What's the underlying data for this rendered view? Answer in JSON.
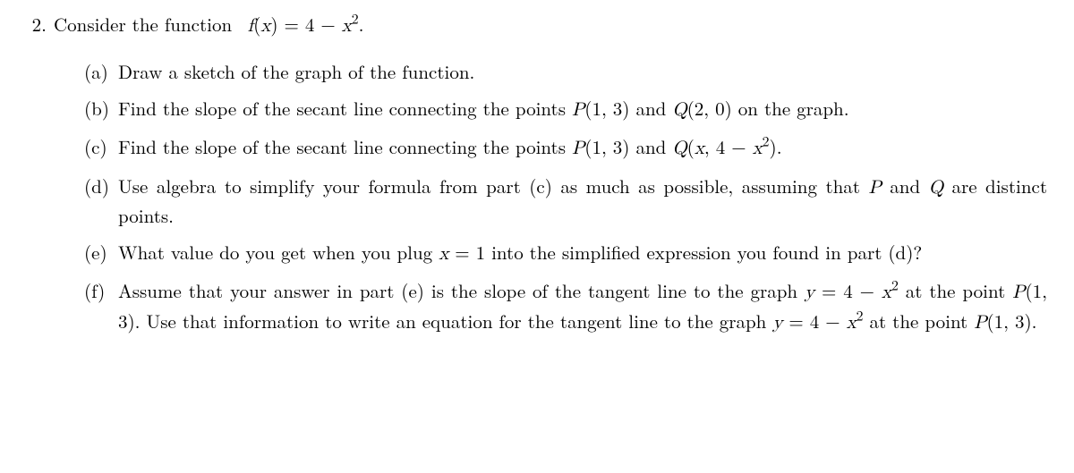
{
  "problem": {
    "number": "2.",
    "stem_html": "Consider the function &nbsp;<span class=\"math-it\">f</span>(<span class=\"math-it\">x</span>) = 4 &minus; <span class=\"math-it\">x</span><sup>2</sup>."
  },
  "subparts": [
    {
      "label": "(a)",
      "body_html": "Draw a sketch of the graph of the function."
    },
    {
      "label": "(b)",
      "body_html": "Find the slope of the secant line connecting the points <span class=\"math-it\">P</span>(1, 3) and <span class=\"math-it\">Q</span>(2, 0) on the graph."
    },
    {
      "label": "(c)",
      "body_html": "Find the slope of the secant line connecting the points <span class=\"math-it\">P</span>(1, 3) and <span class=\"math-it\">Q</span>(<span class=\"math-it\">x</span>, 4 &minus; <span class=\"math-it\">x</span><sup>2</sup>)."
    },
    {
      "label": "(d)",
      "body_html": "Use algebra to simplify your formula from part (c) as much as possible, assuming that <span class=\"math-it\">P</span> and <span class=\"math-it\">Q</span> are distinct points."
    },
    {
      "label": "(e)",
      "body_html": "What value do you get when you plug <span class=\"math-it\">x</span> = 1 into the simplified expression you found in part (d)?"
    },
    {
      "label": "(f)",
      "body_html": "Assume that your answer in part (e) is the slope of the tangent line to the graph <span class=\"math-it\">y</span> = 4 &minus; <span class=\"math-it\">x</span><sup>2</sup> at the point <span class=\"math-it\">P</span>(1, 3). Use that information to write an equation for the tangent line to the graph <span class=\"math-it\">y</span> = 4 &minus; <span class=\"math-it\">x</span><sup>2</sup> at the point <span class=\"math-it\">P</span>(1, 3)."
    }
  ]
}
